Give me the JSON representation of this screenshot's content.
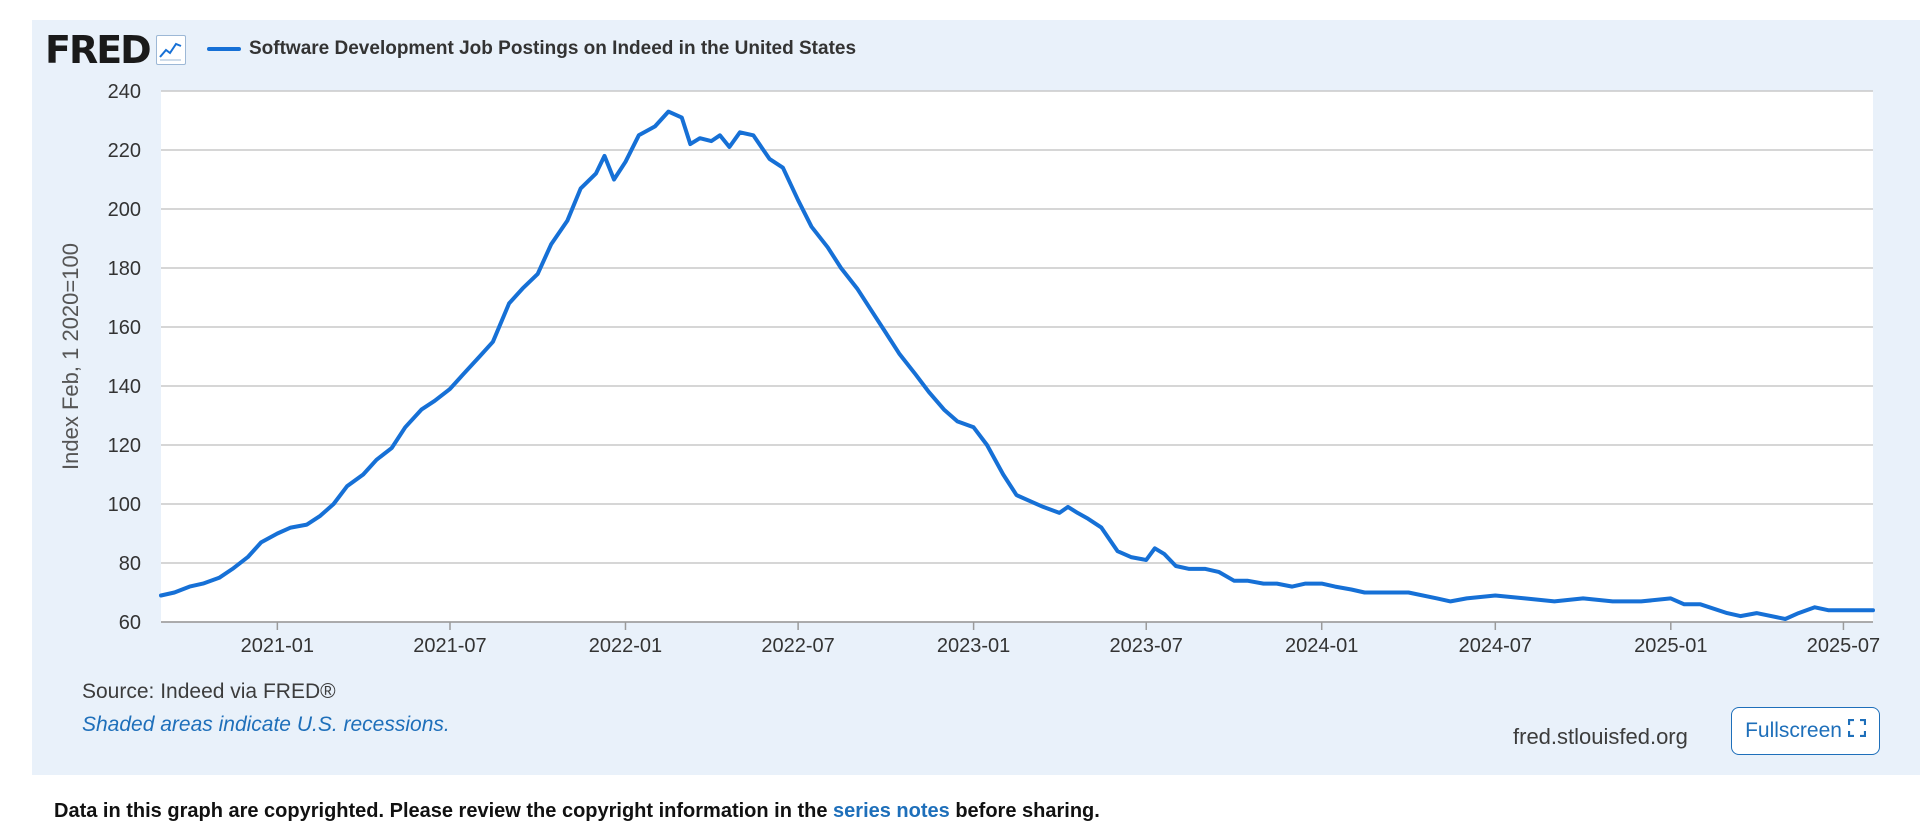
{
  "brand": {
    "logo_text": "FRED",
    "logo_icon": "line-chart-icon"
  },
  "colors": {
    "series": "#1670d6",
    "grid": "#c9c9c9",
    "panel": "#e9f1fa",
    "link": "#1e6fba"
  },
  "footer": {
    "source": "Source: Indeed via FRED®",
    "recession_note": "Shaded areas indicate U.S. recessions.",
    "site": "fred.stlouisfed.org",
    "fullscreen_label": "Fullscreen",
    "fullscreen_icon": "expand-icon",
    "copyright_before": "Data in this graph are copyrighted. Please review the copyright information in the ",
    "copyright_link": "series notes",
    "copyright_after": " before sharing."
  },
  "chart_data": {
    "type": "line",
    "title": "",
    "xlabel": "",
    "ylabel": "Index Feb, 1 2020=100",
    "ylim": [
      60,
      240
    ],
    "xlim": [
      "2020-09-01",
      "2025-08-01"
    ],
    "yticks": [
      60,
      80,
      100,
      120,
      140,
      160,
      180,
      200,
      220,
      240
    ],
    "xticks": [
      "2021-01",
      "2021-07",
      "2022-01",
      "2022-07",
      "2023-01",
      "2023-07",
      "2024-01",
      "2024-07",
      "2025-01",
      "2025-07"
    ],
    "grid": true,
    "legend": "top-left",
    "series": [
      {
        "name": "Software Development Job Postings on Indeed in the United States",
        "points": [
          [
            "2020-09-01",
            69
          ],
          [
            "2020-09-15",
            70
          ],
          [
            "2020-10-01",
            72
          ],
          [
            "2020-10-15",
            73
          ],
          [
            "2020-11-01",
            75
          ],
          [
            "2020-11-15",
            78
          ],
          [
            "2020-12-01",
            82
          ],
          [
            "2020-12-15",
            87
          ],
          [
            "2021-01-01",
            90
          ],
          [
            "2021-01-15",
            92
          ],
          [
            "2021-02-01",
            93
          ],
          [
            "2021-02-15",
            96
          ],
          [
            "2021-03-01",
            100
          ],
          [
            "2021-03-15",
            106
          ],
          [
            "2021-04-01",
            110
          ],
          [
            "2021-04-15",
            115
          ],
          [
            "2021-05-01",
            119
          ],
          [
            "2021-05-15",
            126
          ],
          [
            "2021-06-01",
            132
          ],
          [
            "2021-06-15",
            135
          ],
          [
            "2021-07-01",
            139
          ],
          [
            "2021-07-15",
            144
          ],
          [
            "2021-08-01",
            150
          ],
          [
            "2021-08-15",
            155
          ],
          [
            "2021-09-01",
            168
          ],
          [
            "2021-09-15",
            173
          ],
          [
            "2021-10-01",
            178
          ],
          [
            "2021-10-15",
            188
          ],
          [
            "2021-11-01",
            196
          ],
          [
            "2021-11-15",
            207
          ],
          [
            "2021-12-01",
            212
          ],
          [
            "2021-12-10",
            218
          ],
          [
            "2021-12-20",
            210
          ],
          [
            "2022-01-01",
            216
          ],
          [
            "2022-01-15",
            225
          ],
          [
            "2022-02-01",
            228
          ],
          [
            "2022-02-15",
            233
          ],
          [
            "2022-03-01",
            231
          ],
          [
            "2022-03-10",
            222
          ],
          [
            "2022-03-20",
            224
          ],
          [
            "2022-04-01",
            223
          ],
          [
            "2022-04-10",
            225
          ],
          [
            "2022-04-20",
            221
          ],
          [
            "2022-05-01",
            226
          ],
          [
            "2022-05-15",
            225
          ],
          [
            "2022-06-01",
            217
          ],
          [
            "2022-06-15",
            214
          ],
          [
            "2022-07-01",
            203
          ],
          [
            "2022-07-15",
            194
          ],
          [
            "2022-08-01",
            187
          ],
          [
            "2022-08-15",
            180
          ],
          [
            "2022-09-01",
            173
          ],
          [
            "2022-09-15",
            166
          ],
          [
            "2022-10-01",
            158
          ],
          [
            "2022-10-15",
            151
          ],
          [
            "2022-11-01",
            144
          ],
          [
            "2022-11-15",
            138
          ],
          [
            "2022-12-01",
            132
          ],
          [
            "2022-12-15",
            128
          ],
          [
            "2023-01-01",
            126
          ],
          [
            "2023-01-15",
            120
          ],
          [
            "2023-02-01",
            110
          ],
          [
            "2023-02-15",
            103
          ],
          [
            "2023-03-01",
            101
          ],
          [
            "2023-03-15",
            99
          ],
          [
            "2023-04-01",
            97
          ],
          [
            "2023-04-10",
            99
          ],
          [
            "2023-04-20",
            97
          ],
          [
            "2023-05-01",
            95
          ],
          [
            "2023-05-15",
            92
          ],
          [
            "2023-06-01",
            84
          ],
          [
            "2023-06-15",
            82
          ],
          [
            "2023-07-01",
            81
          ],
          [
            "2023-07-10",
            85
          ],
          [
            "2023-07-20",
            83
          ],
          [
            "2023-08-01",
            79
          ],
          [
            "2023-08-15",
            78
          ],
          [
            "2023-09-01",
            78
          ],
          [
            "2023-09-15",
            77
          ],
          [
            "2023-10-01",
            74
          ],
          [
            "2023-10-15",
            74
          ],
          [
            "2023-11-01",
            73
          ],
          [
            "2023-11-15",
            73
          ],
          [
            "2023-12-01",
            72
          ],
          [
            "2023-12-15",
            73
          ],
          [
            "2024-01-01",
            73
          ],
          [
            "2024-01-15",
            72
          ],
          [
            "2024-02-01",
            71
          ],
          [
            "2024-02-15",
            70
          ],
          [
            "2024-03-01",
            70
          ],
          [
            "2024-04-01",
            70
          ],
          [
            "2024-05-01",
            68
          ],
          [
            "2024-05-15",
            67
          ],
          [
            "2024-06-01",
            68
          ],
          [
            "2024-07-01",
            69
          ],
          [
            "2024-08-01",
            68
          ],
          [
            "2024-09-01",
            67
          ],
          [
            "2024-10-01",
            68
          ],
          [
            "2024-11-01",
            67
          ],
          [
            "2024-12-01",
            67
          ],
          [
            "2025-01-01",
            68
          ],
          [
            "2025-01-15",
            66
          ],
          [
            "2025-02-01",
            66
          ],
          [
            "2025-03-01",
            63
          ],
          [
            "2025-03-15",
            62
          ],
          [
            "2025-04-01",
            63
          ],
          [
            "2025-05-01",
            61
          ],
          [
            "2025-05-15",
            63
          ],
          [
            "2025-06-01",
            65
          ],
          [
            "2025-06-15",
            64
          ],
          [
            "2025-07-01",
            64
          ],
          [
            "2025-08-01",
            64
          ]
        ]
      }
    ]
  }
}
